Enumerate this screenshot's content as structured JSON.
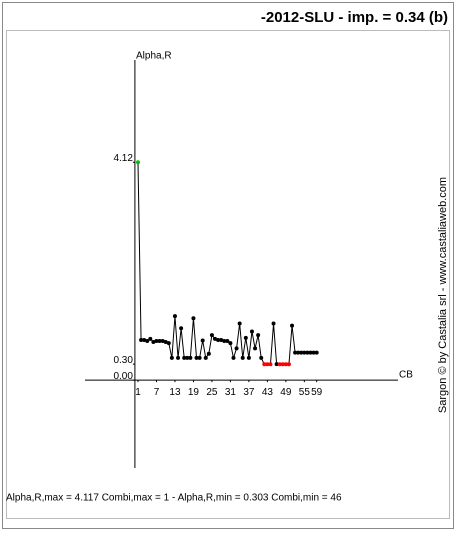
{
  "chart_data": {
    "type": "line",
    "title": "-2012-SLU -  imp. =  0.34 (b)",
    "y_label": "Alpha,R",
    "x_label": "CB",
    "side_text": "Sargon © by Castalia srl - www.castaliaweb.com",
    "footer": "Alpha,R,max = 4.117 Combi,max = 1 - Alpha,R,min = 0.303 Combi,min = 46",
    "x": [
      1,
      2,
      3,
      4,
      5,
      6,
      7,
      8,
      9,
      10,
      11,
      12,
      13,
      14,
      15,
      16,
      17,
      18,
      19,
      20,
      21,
      22,
      23,
      24,
      25,
      26,
      27,
      28,
      29,
      30,
      31,
      32,
      33,
      34,
      35,
      36,
      37,
      38,
      39,
      40,
      41,
      42,
      43,
      44,
      45,
      46,
      47,
      48,
      49,
      50,
      51,
      52,
      53,
      54,
      55,
      56,
      57,
      58,
      59
    ],
    "series": [
      {
        "name": "Alpha,R",
        "color": "#000000",
        "values": [
          4.117,
          0.76,
          0.76,
          0.74,
          0.78,
          0.72,
          0.74,
          0.74,
          0.74,
          0.72,
          0.7,
          0.42,
          1.21,
          0.42,
          0.98,
          0.42,
          0.42,
          0.42,
          1.17,
          0.42,
          0.42,
          0.75,
          0.42,
          0.5,
          0.85,
          0.78,
          0.76,
          0.76,
          0.74,
          0.74,
          0.7,
          0.42,
          0.6,
          1.07,
          0.42,
          0.8,
          0.42,
          0.92,
          0.6,
          0.85,
          0.42,
          0.3,
          0.3,
          0.3,
          1.07,
          0.303,
          0.3,
          0.3,
          0.3,
          0.3,
          1.03,
          0.52,
          0.52,
          0.52,
          0.52,
          0.52,
          0.52,
          0.52,
          0.52
        ]
      }
    ],
    "max_point_color": "#00c000",
    "min_point_color": "#ff0000",
    "xlim": [
      -16.2,
      85.4
    ],
    "ylim": [
      -1.66,
      6.05
    ],
    "xticks": [
      1,
      7,
      13,
      19,
      25,
      31,
      37,
      43,
      49,
      55,
      59
    ],
    "yticks": [
      {
        "value": 4.117,
        "label": "4.12"
      },
      {
        "value": 0.303,
        "label": "0.30"
      },
      {
        "value": 0,
        "label": "0.00"
      }
    ],
    "grid": false
  }
}
